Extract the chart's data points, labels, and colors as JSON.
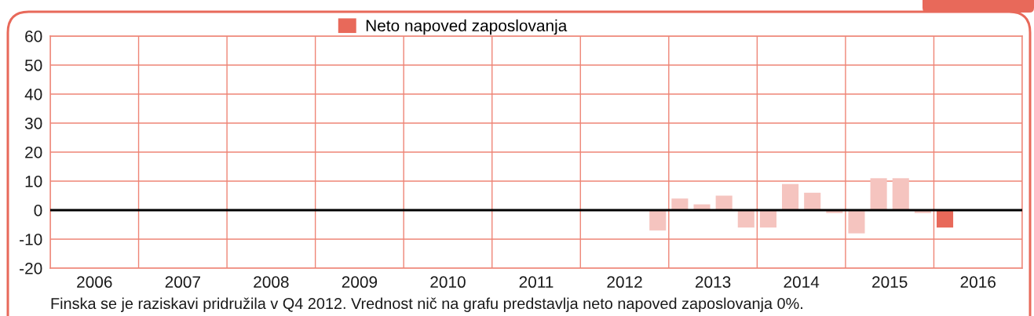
{
  "chart_data": {
    "type": "bar",
    "series": [
      {
        "name": "Neto napoved zaposlovanja",
        "color": "#e8695a",
        "x": [
          2012.875,
          2013.125,
          2013.375,
          2013.625,
          2013.875,
          2014.125,
          2014.375,
          2014.625,
          2014.875,
          2015.125,
          2015.375,
          2015.625,
          2015.875,
          2016.125
        ],
        "values": [
          -7,
          4,
          2,
          5,
          -6,
          -6,
          9,
          6,
          -1,
          -8,
          11,
          11,
          -1,
          -6
        ],
        "colors": [
          "#f5c4bf",
          "#f5c4bf",
          "#f5c4bf",
          "#f5c4bf",
          "#f5c4bf",
          "#f5c4bf",
          "#f5c4bf",
          "#f5c4bf",
          "#f5c4bf",
          "#f5c4bf",
          "#f5c4bf",
          "#f5c4bf",
          "#f5c4bf",
          "#e8695a"
        ]
      }
    ],
    "xlim": [
      2006,
      2017
    ],
    "xticks": [
      {
        "value": 2006,
        "label": null
      },
      {
        "value": 2006.5,
        "label": "2006"
      },
      {
        "value": 2007,
        "label": null
      },
      {
        "value": 2007.5,
        "label": "2007"
      },
      {
        "value": 2008,
        "label": null
      },
      {
        "value": 2008.5,
        "label": "2008"
      },
      {
        "value": 2009,
        "label": null
      },
      {
        "value": 2009.5,
        "label": "2009"
      },
      {
        "value": 2010,
        "label": null
      },
      {
        "value": 2010.5,
        "label": "2010"
      },
      {
        "value": 2011,
        "label": null
      },
      {
        "value": 2011.5,
        "label": "2011"
      },
      {
        "value": 2012,
        "label": null
      },
      {
        "value": 2012.5,
        "label": "2012"
      },
      {
        "value": 2013,
        "label": null
      },
      {
        "value": 2013.5,
        "label": "2013"
      },
      {
        "value": 2014,
        "label": null
      },
      {
        "value": 2014.5,
        "label": "2014"
      },
      {
        "value": 2015,
        "label": null
      },
      {
        "value": 2015.5,
        "label": "2015"
      },
      {
        "value": 2016,
        "label": null
      },
      {
        "value": 2016.5,
        "label": "2016"
      },
      {
        "value": 2017,
        "label": null
      }
    ],
    "ylim": [
      -20,
      60
    ],
    "yticks": [
      -20,
      -10,
      0,
      10,
      20,
      30,
      40,
      50,
      60
    ],
    "grid": true,
    "legend": "top",
    "ref_lines": [
      {
        "axis": "y",
        "value": 0,
        "color": "#000000"
      }
    ],
    "annotations": [
      "Finska se je raziskavi pridružila v Q4 2012. Vrednost nič na grafu predstavlja neto napoved zaposlovanja 0%."
    ]
  }
}
